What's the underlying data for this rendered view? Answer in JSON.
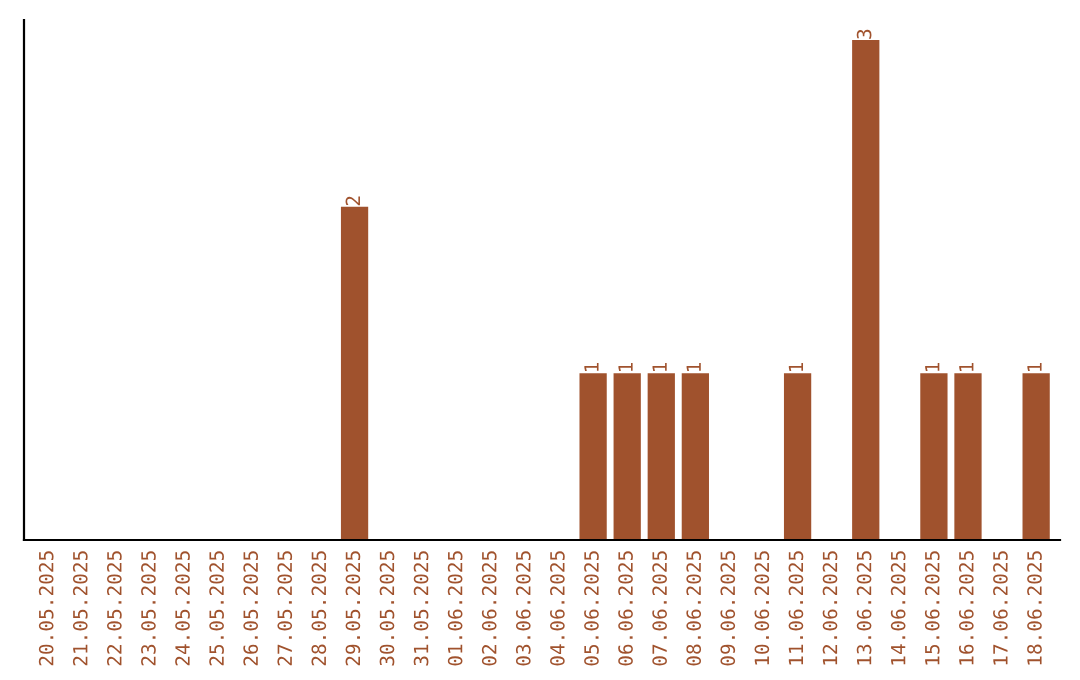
{
  "chart_data": {
    "type": "bar",
    "categories": [
      "20.05.2025",
      "21.05.2025",
      "22.05.2025",
      "23.05.2025",
      "24.05.2025",
      "25.05.2025",
      "26.05.2025",
      "27.05.2025",
      "28.05.2025",
      "29.05.2025",
      "30.05.2025",
      "31.05.2025",
      "01.06.2025",
      "02.06.2025",
      "03.06.2025",
      "04.06.2025",
      "05.06.2025",
      "06.06.2025",
      "07.06.2025",
      "08.06.2025",
      "09.06.2025",
      "10.06.2025",
      "11.06.2025",
      "12.06.2025",
      "13.06.2025",
      "14.06.2025",
      "15.06.2025",
      "16.06.2025",
      "17.06.2025",
      "18.06.2025"
    ],
    "values": [
      0,
      0,
      0,
      0,
      0,
      0,
      0,
      0,
      0,
      2,
      0,
      0,
      0,
      0,
      0,
      0,
      1,
      1,
      1,
      1,
      0,
      0,
      1,
      0,
      3,
      0,
      1,
      1,
      0,
      1
    ],
    "value_labels": [
      null,
      null,
      null,
      null,
      null,
      null,
      null,
      null,
      null,
      "2",
      null,
      null,
      null,
      null,
      null,
      null,
      "1",
      "1",
      "1",
      "1",
      null,
      null,
      "1",
      null,
      "3",
      null,
      "1",
      "1",
      null,
      "1"
    ],
    "color": "#a0522d",
    "tick_labels": "x",
    "grid": false,
    "legend": false
  }
}
